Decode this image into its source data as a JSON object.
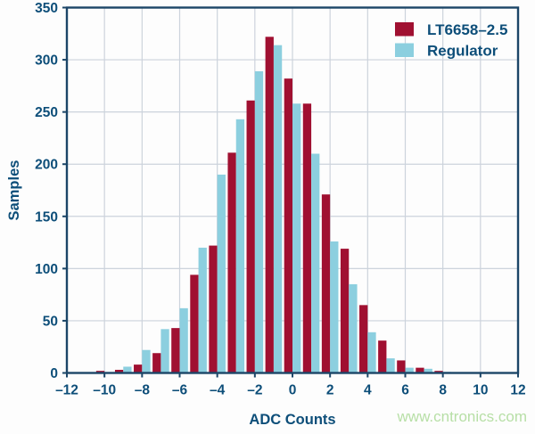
{
  "chart_data": {
    "type": "bar",
    "title": "",
    "xlabel": "ADC Counts",
    "ylabel": "Samples",
    "xlim": [
      -12,
      12
    ],
    "ylim": [
      0,
      350
    ],
    "x_ticks": [
      -12,
      -10,
      -8,
      -6,
      -4,
      -2,
      0,
      2,
      4,
      6,
      8,
      10,
      12
    ],
    "x_tick_labels": [
      "–12",
      "–10",
      "–8",
      "–6",
      "–4",
      "–2",
      "0",
      "2",
      "4",
      "6",
      "8",
      "10",
      "12"
    ],
    "y_ticks": [
      0,
      50,
      100,
      150,
      200,
      250,
      300,
      350
    ],
    "grid": true,
    "legend_position": "top-right",
    "categories": [
      -10,
      -9,
      -8,
      -7,
      -6,
      -5,
      -4,
      -3,
      -2,
      -1,
      0,
      1,
      2,
      3,
      4,
      5,
      6,
      7,
      8
    ],
    "series": [
      {
        "name": "LT6658–2.5",
        "color": "#a01031",
        "values": [
          2,
          3,
          8,
          19,
          43,
          94,
          122,
          211,
          261,
          322,
          282,
          258,
          171,
          119,
          65,
          31,
          12,
          5,
          2
        ]
      },
      {
        "name": "Regulator",
        "color": "#8ccfdf",
        "values": [
          0,
          6,
          22,
          42,
          62,
          120,
          190,
          243,
          289,
          314,
          258,
          210,
          126,
          85,
          39,
          14,
          5,
          4,
          1
        ]
      }
    ],
    "colors": {
      "axis_border": "#1c4668",
      "gridline": "#ccd3dc",
      "tick_text": "#0d4e79",
      "plot_background": "#fdfdfd"
    }
  },
  "watermark": {
    "text": "www.cntronics.com",
    "color": "#b7dfa6"
  }
}
